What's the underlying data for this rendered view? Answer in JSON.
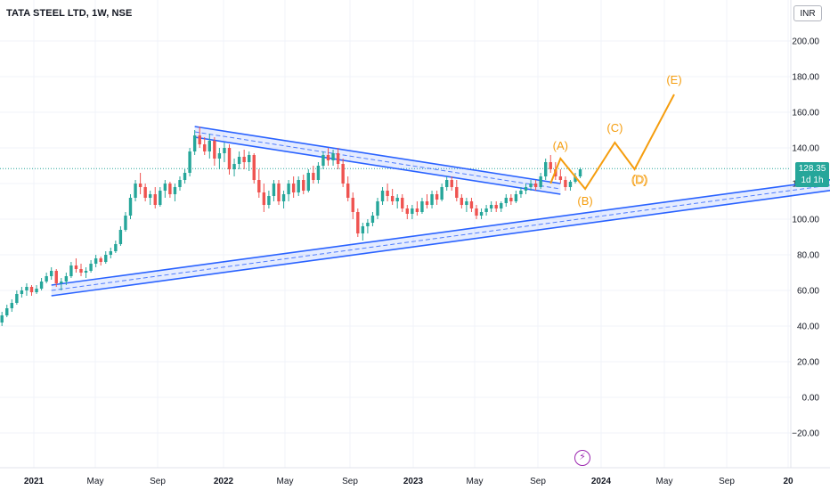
{
  "header": {
    "title": "TATA STEEL LTD, 1W, NSE",
    "currency": "INR"
  },
  "price_tag": {
    "price": "128.35",
    "countdown": "1d 1h",
    "color": "#26a69a"
  },
  "event_icon": "flash-icon",
  "colors": {
    "up": "#26a69a",
    "down": "#ef5350",
    "channel": "#2962ff",
    "wave": "#f59d0e",
    "event": "#9c27b0"
  },
  "chart_data": {
    "type": "candlestick",
    "y_axis": {
      "ticks": [
        -20,
        0,
        20,
        40,
        60,
        80,
        100,
        120,
        140,
        160,
        180,
        200
      ],
      "labels": [
        "−20.00",
        "0.00",
        "20.00",
        "40.00",
        "60.00",
        "80.00",
        "100.00",
        "120.00",
        "140.00",
        "160.00",
        "180.00",
        "200.00"
      ],
      "ylim": [
        -40,
        212
      ]
    },
    "x_axis": {
      "ticks": [
        "2021",
        "May",
        "Sep",
        "2022",
        "May",
        "Sep",
        "2023",
        "May",
        "Sep",
        "2024",
        "May",
        "Sep",
        "20"
      ]
    },
    "grid": true,
    "last_price": 128.35,
    "candles": [
      [
        42,
        48,
        40,
        46
      ],
      [
        46,
        52,
        45,
        50
      ],
      [
        50,
        55,
        48,
        53
      ],
      [
        53,
        60,
        52,
        58
      ],
      [
        58,
        62,
        56,
        60
      ],
      [
        60,
        64,
        57,
        62
      ],
      [
        62,
        63,
        57,
        59
      ],
      [
        59,
        63,
        58,
        61
      ],
      [
        61,
        67,
        60,
        65
      ],
      [
        65,
        70,
        64,
        68
      ],
      [
        68,
        73,
        66,
        71
      ],
      [
        71,
        72,
        62,
        64
      ],
      [
        64,
        67,
        60,
        65
      ],
      [
        65,
        70,
        63,
        68
      ],
      [
        68,
        76,
        67,
        74
      ],
      [
        74,
        78,
        70,
        72
      ],
      [
        72,
        75,
        68,
        70
      ],
      [
        70,
        73,
        67,
        71
      ],
      [
        71,
        77,
        70,
        75
      ],
      [
        75,
        80,
        73,
        78
      ],
      [
        78,
        79,
        74,
        76
      ],
      [
        76,
        82,
        75,
        80
      ],
      [
        80,
        84,
        78,
        82
      ],
      [
        82,
        88,
        81,
        86
      ],
      [
        86,
        96,
        85,
        94
      ],
      [
        94,
        104,
        93,
        102
      ],
      [
        102,
        114,
        100,
        112
      ],
      [
        112,
        122,
        110,
        120
      ],
      [
        120,
        126,
        114,
        118
      ],
      [
        118,
        120,
        110,
        112
      ],
      [
        112,
        116,
        108,
        114
      ],
      [
        114,
        118,
        106,
        108
      ],
      [
        108,
        118,
        107,
        116
      ],
      [
        116,
        122,
        112,
        120
      ],
      [
        120,
        121,
        112,
        114
      ],
      [
        114,
        120,
        110,
        118
      ],
      [
        118,
        124,
        116,
        122
      ],
      [
        122,
        128,
        120,
        126
      ],
      [
        126,
        140,
        124,
        138
      ],
      [
        138,
        150,
        136,
        147
      ],
      [
        147,
        152,
        140,
        142
      ],
      [
        142,
        146,
        136,
        138
      ],
      [
        138,
        148,
        134,
        144
      ],
      [
        144,
        146,
        130,
        134
      ],
      [
        134,
        140,
        128,
        137
      ],
      [
        137,
        143,
        132,
        140
      ],
      [
        140,
        142,
        125,
        128
      ],
      [
        128,
        134,
        124,
        131
      ],
      [
        131,
        138,
        128,
        135
      ],
      [
        135,
        139,
        128,
        132
      ],
      [
        132,
        138,
        127,
        136
      ],
      [
        136,
        137,
        120,
        122
      ],
      [
        122,
        128,
        112,
        115
      ],
      [
        115,
        120,
        104,
        108
      ],
      [
        108,
        116,
        106,
        113
      ],
      [
        113,
        122,
        110,
        120
      ],
      [
        120,
        122,
        108,
        110
      ],
      [
        110,
        116,
        106,
        114
      ],
      [
        114,
        122,
        110,
        120
      ],
      [
        120,
        124,
        112,
        115
      ],
      [
        115,
        124,
        113,
        122
      ],
      [
        122,
        125,
        114,
        116
      ],
      [
        116,
        128,
        115,
        126
      ],
      [
        126,
        130,
        120,
        122
      ],
      [
        122,
        132,
        120,
        130
      ],
      [
        130,
        138,
        128,
        136
      ],
      [
        136,
        140,
        130,
        133
      ],
      [
        133,
        139,
        130,
        137
      ],
      [
        137,
        140,
        128,
        131
      ],
      [
        131,
        134,
        118,
        120
      ],
      [
        120,
        124,
        110,
        112
      ],
      [
        112,
        115,
        100,
        104
      ],
      [
        104,
        106,
        90,
        92
      ],
      [
        92,
        98,
        88,
        96
      ],
      [
        96,
        100,
        92,
        98
      ],
      [
        98,
        104,
        96,
        102
      ],
      [
        102,
        112,
        100,
        110
      ],
      [
        110,
        118,
        108,
        116
      ],
      [
        116,
        120,
        110,
        113
      ],
      [
        113,
        117,
        108,
        110
      ],
      [
        110,
        114,
        106,
        112
      ],
      [
        112,
        114,
        104,
        106
      ],
      [
        106,
        108,
        100,
        103
      ],
      [
        103,
        108,
        100,
        106
      ],
      [
        106,
        110,
        102,
        104
      ],
      [
        104,
        112,
        103,
        110
      ],
      [
        110,
        114,
        106,
        108
      ],
      [
        108,
        116,
        106,
        114
      ],
      [
        114,
        116,
        108,
        111
      ],
      [
        111,
        120,
        110,
        118
      ],
      [
        118,
        124,
        116,
        122
      ],
      [
        122,
        124,
        116,
        118
      ],
      [
        118,
        122,
        110,
        112
      ],
      [
        112,
        114,
        106,
        108
      ],
      [
        108,
        112,
        104,
        110
      ],
      [
        110,
        112,
        104,
        106
      ],
      [
        106,
        108,
        100,
        102
      ],
      [
        102,
        106,
        100,
        104
      ],
      [
        104,
        108,
        102,
        106
      ],
      [
        106,
        110,
        104,
        108
      ],
      [
        108,
        110,
        104,
        106
      ],
      [
        106,
        110,
        104,
        109
      ],
      [
        109,
        114,
        107,
        112
      ],
      [
        112,
        114,
        108,
        110
      ],
      [
        110,
        116,
        109,
        114
      ],
      [
        114,
        118,
        112,
        116
      ],
      [
        116,
        120,
        114,
        118
      ],
      [
        118,
        122,
        116,
        120
      ],
      [
        120,
        122,
        116,
        118
      ],
      [
        118,
        126,
        117,
        124
      ],
      [
        124,
        134,
        122,
        132
      ],
      [
        132,
        136,
        126,
        128
      ],
      [
        128,
        132,
        122,
        124
      ],
      [
        124,
        128,
        120,
        122
      ],
      [
        122,
        124,
        116,
        118
      ],
      [
        118,
        122,
        116,
        121
      ],
      [
        121,
        126,
        120,
        124
      ],
      [
        124,
        129,
        123,
        128
      ]
    ],
    "channel_lines": [
      {
        "name": "upper-trendline",
        "x1": 39,
        "y1": 149,
        "x2": 113,
        "y2": 117
      },
      {
        "name": "lower-trendline",
        "x1": 10,
        "y1": 60,
        "x2": 170,
        "y2": 120
      }
    ],
    "wave_path": [
      [
        111,
        120
      ],
      [
        113,
        134
      ],
      [
        118,
        117
      ],
      [
        124,
        143
      ],
      [
        128,
        128
      ],
      [
        136,
        170
      ]
    ],
    "wave_labels": [
      {
        "label": "(A)",
        "x": 113,
        "y": 139,
        "outlined": false
      },
      {
        "label": "(B)",
        "x": 118,
        "y": 108,
        "outlined": false
      },
      {
        "label": "(C)",
        "x": 124,
        "y": 149,
        "outlined": false
      },
      {
        "label": "(D)",
        "x": 129,
        "y": 120,
        "outlined": true
      },
      {
        "label": "(E)",
        "x": 136,
        "y": 176,
        "outlined": false
      }
    ]
  }
}
